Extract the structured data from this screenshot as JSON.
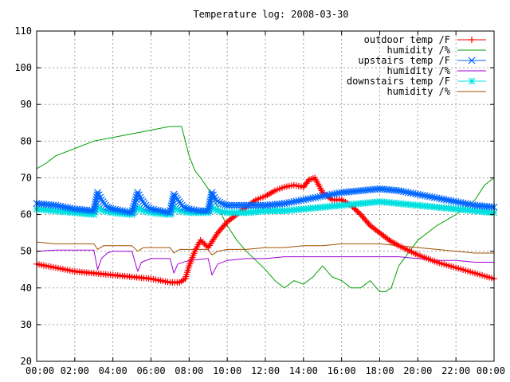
{
  "chart_data": {
    "type": "line",
    "title": "Temperature log: 2008-03-30",
    "xlabel": "",
    "ylabel": "",
    "xlim": [
      0,
      24
    ],
    "ylim": [
      20,
      110
    ],
    "grid": true,
    "legend_position": "top-right",
    "y_ticks": [
      "20",
      "30",
      "40",
      "50",
      "60",
      "70",
      "80",
      "90",
      "100",
      "110"
    ],
    "x_ticks": [
      "00:00",
      "02:00",
      "04:00",
      "06:00",
      "08:00",
      "10:00",
      "12:00",
      "14:00",
      "16:00",
      "18:00",
      "20:00",
      "22:00",
      "00:00"
    ],
    "series": [
      {
        "name": "outdoor temp /F",
        "color": "#ff0000",
        "marker": "plus",
        "x": [
          0,
          1,
          2,
          3,
          4,
          5,
          6,
          6.5,
          7,
          7.5,
          7.8,
          8,
          8.3,
          8.6,
          9,
          9.5,
          10,
          10.5,
          11,
          11.5,
          12,
          12.5,
          13,
          13.5,
          14,
          14.3,
          14.6,
          15,
          15.5,
          16,
          16.5,
          17,
          17.5,
          18,
          18.5,
          19,
          20,
          21,
          22,
          23,
          24
        ],
        "y": [
          46.5,
          45.5,
          44.5,
          44,
          43.5,
          43,
          42.5,
          42,
          41.5,
          41.5,
          42.5,
          46,
          50,
          53,
          51,
          55,
          58,
          60,
          62,
          64,
          65,
          66.5,
          67.5,
          68,
          67.5,
          69.5,
          70,
          66,
          64,
          64,
          62.5,
          60,
          57,
          55,
          53,
          51.5,
          49,
          47,
          45.5,
          44,
          42.5
        ]
      },
      {
        "name": "humidity /%",
        "color": "#00a000",
        "marker": "none",
        "x": [
          0,
          0.5,
          1,
          2,
          3,
          4,
          5,
          6,
          7,
          7.6,
          7.8,
          8,
          8.3,
          8.6,
          9,
          9.5,
          10,
          10.5,
          11,
          12,
          12.5,
          13,
          13.5,
          14,
          14.5,
          15,
          15.5,
          16,
          16.5,
          17,
          17.5,
          18,
          18.3,
          18.6,
          19,
          20,
          21,
          22,
          23,
          23.5,
          24
        ],
        "y": [
          72.5,
          74,
          76,
          78,
          80,
          81,
          82,
          83,
          84,
          84,
          80,
          76,
          72,
          70,
          67,
          62,
          57,
          53,
          50,
          45,
          42,
          40,
          42,
          41,
          43,
          46,
          43,
          42,
          40,
          40,
          42,
          39,
          39,
          40,
          46,
          53,
          57,
          60,
          64,
          68,
          70
        ]
      },
      {
        "name": "upstairs temp /F",
        "color": "#0066ff",
        "marker": "x",
        "x": [
          0,
          1,
          2,
          3,
          3.2,
          3.4,
          3.7,
          4,
          4.5,
          5,
          5.3,
          5.5,
          5.8,
          6,
          6.5,
          7,
          7.2,
          7.4,
          7.7,
          8,
          8.5,
          9,
          9.2,
          9.4,
          9.7,
          10,
          11,
          12,
          13,
          14,
          15,
          16,
          17,
          18,
          19,
          20,
          21,
          22,
          23,
          24
        ],
        "y": [
          63,
          62.5,
          61.5,
          61,
          66,
          64,
          62,
          61.5,
          61,
          60.5,
          66,
          64,
          62,
          61.5,
          61,
          60.5,
          65.5,
          64,
          62,
          61.5,
          61,
          61,
          66,
          64,
          63,
          62.5,
          62.5,
          62.5,
          63,
          64,
          65,
          66,
          66.5,
          67,
          66.5,
          65.5,
          64.5,
          63.5,
          62.5,
          62
        ]
      },
      {
        "name": "humidity /%",
        "color": "#a000d0",
        "marker": "none",
        "x": [
          0,
          1,
          2,
          3,
          3.2,
          3.4,
          3.7,
          4,
          5,
          5.3,
          5.5,
          6,
          7,
          7.2,
          7.4,
          8,
          9,
          9.2,
          9.5,
          10,
          11,
          12,
          13,
          14,
          15,
          16,
          17,
          18,
          19,
          20,
          21,
          22,
          23,
          24
        ],
        "y": [
          50,
          50.3,
          50.3,
          50.3,
          45,
          48,
          49.5,
          50,
          50,
          44.5,
          47,
          48,
          48,
          44,
          46.5,
          47.5,
          48,
          43.5,
          46.5,
          47.5,
          48,
          48,
          48.5,
          48.5,
          48.5,
          48.5,
          48.5,
          48.5,
          48.5,
          48,
          47.5,
          47.5,
          47,
          47
        ]
      },
      {
        "name": "downstairs temp /F",
        "color": "#00e0e0",
        "marker": "star",
        "x": [
          0,
          1,
          2,
          3,
          3.2,
          3.5,
          4,
          5,
          5.3,
          5.6,
          6,
          7,
          7.2,
          7.5,
          8,
          9,
          9.2,
          9.5,
          10,
          11,
          12,
          13,
          14,
          15,
          16,
          17,
          18,
          19,
          20,
          21,
          22,
          23,
          24
        ],
        "y": [
          61.5,
          61,
          60.5,
          60,
          62,
          61,
          60.5,
          60,
          62,
          61,
          60.5,
          60,
          62,
          61,
          60.5,
          60.5,
          62,
          61,
          60.5,
          60.5,
          61,
          61,
          61.5,
          62,
          62.5,
          63,
          63.5,
          63,
          62.5,
          62,
          61.5,
          61,
          60.5
        ]
      },
      {
        "name": "humidity /%",
        "color": "#a05000",
        "marker": "none",
        "x": [
          0,
          1,
          2,
          3,
          3.2,
          3.5,
          4,
          5,
          5.3,
          5.6,
          6,
          7,
          7.2,
          7.5,
          8,
          9,
          9.2,
          9.5,
          10,
          11,
          12,
          13,
          14,
          15,
          16,
          17,
          18,
          19,
          20,
          21,
          22,
          23,
          24
        ],
        "y": [
          52.5,
          52,
          52,
          52,
          50.5,
          51.5,
          51.5,
          51.5,
          50,
          51,
          51,
          51,
          49.5,
          50.5,
          50.5,
          50.5,
          49,
          50,
          50.5,
          50.5,
          51,
          51,
          51.5,
          51.5,
          52,
          52,
          52,
          51.5,
          51,
          50.5,
          50,
          49.5,
          49.5
        ]
      }
    ]
  }
}
